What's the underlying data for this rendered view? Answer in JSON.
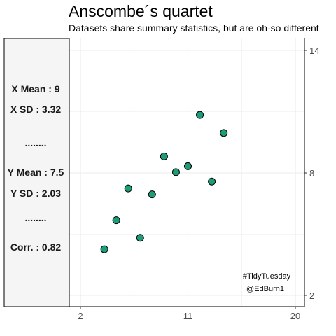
{
  "title": "Anscombe´s quartet",
  "subtitle": "Datasets share summary statistics, but are oh-so different",
  "stats": [
    "X Mean : 9",
    "X SD : 3.32",
    "........",
    "Y Mean : 7.5",
    "Y SD : 2.03",
    "........",
    "Corr. : 0.82"
  ],
  "captions": [
    "#TidyTuesday",
    "@EdBurn1"
  ],
  "colors": {
    "point_fill": "#1b9e77",
    "point_stroke": "#000000",
    "panel_background": "#f5f5f5",
    "grid": "#ebebeb"
  },
  "chart_data": {
    "type": "scatter",
    "title": "Anscombe´s quartet",
    "subtitle": "Datasets share summary statistics, but are oh-so different",
    "xlabel": "",
    "ylabel": "",
    "x_ticks": [
      2,
      11,
      20
    ],
    "y_ticks": [
      2,
      8,
      14
    ],
    "xlim": [
      2,
      20
    ],
    "ylim": [
      2,
      14
    ],
    "y_axis_position": "right",
    "grid": true,
    "series": [
      {
        "x": [
          4,
          5,
          6,
          7,
          8,
          9,
          10,
          11,
          12,
          13,
          14
        ],
        "y": [
          4.26,
          5.68,
          7.24,
          4.82,
          6.95,
          8.81,
          8.04,
          8.33,
          10.84,
          7.58,
          9.96
        ]
      }
    ]
  }
}
